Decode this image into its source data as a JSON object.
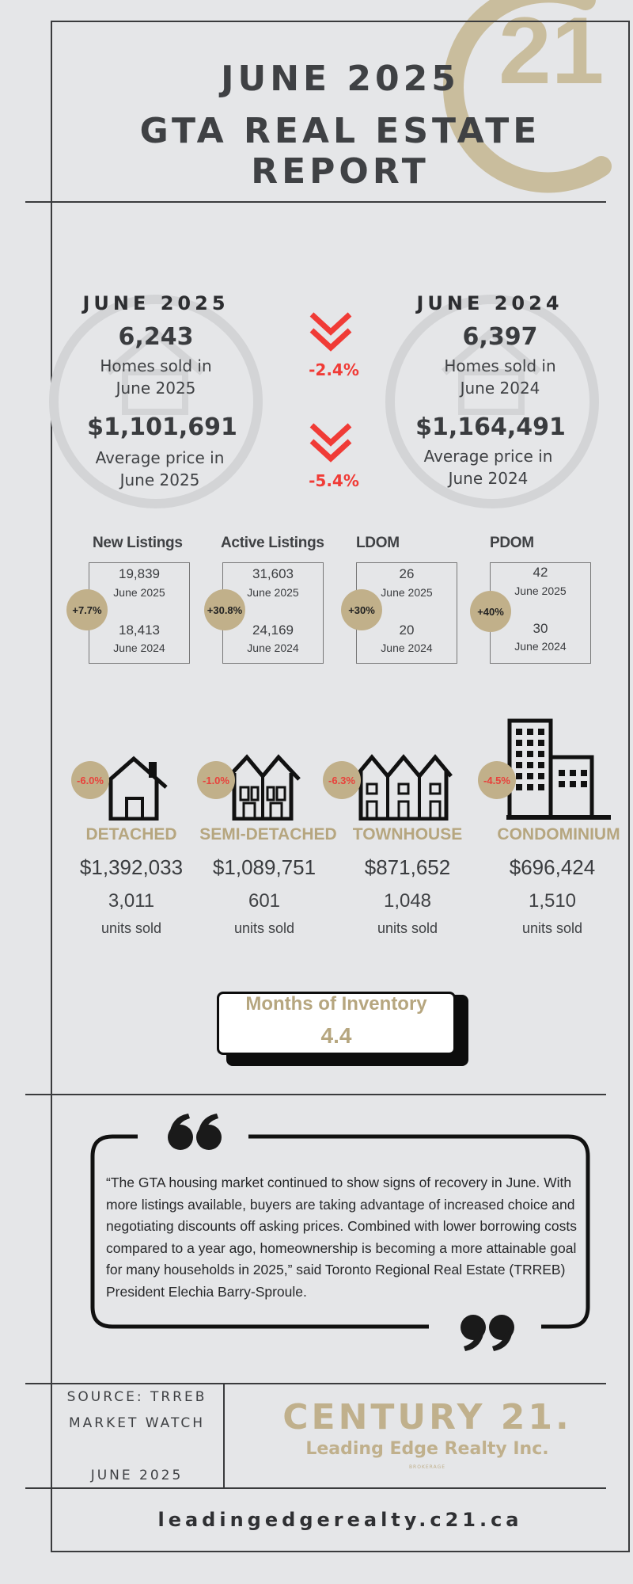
{
  "header": {
    "line1": "JUNE 2025",
    "line2": "GTA REAL ESTATE REPORT",
    "logo": "century21-seal"
  },
  "comparison": {
    "current": {
      "year": "JUNE 2025",
      "homes_sold": "6,243",
      "homes_label_1": "Homes sold in",
      "homes_label_2": "June 2025",
      "price": "$1,101,691",
      "price_label_1": "Average price in",
      "price_label_2": "June 2025"
    },
    "previous": {
      "year": "JUNE 2024",
      "homes_sold": "6,397",
      "homes_label_1": "Homes sold in",
      "homes_label_2": "June 2024",
      "price": "$1,164,491",
      "price_label_1": "Average price in",
      "price_label_2": "June 2024"
    },
    "sales_change": "-2.4%",
    "price_change": "-5.4%",
    "accent": "#f03b36"
  },
  "stats": [
    {
      "title": "New Listings",
      "badge": "+7.7%",
      "v1": "19,839",
      "d1": "June 2025",
      "v2": "18,413",
      "d2": "June 2024"
    },
    {
      "title": "Active Listings",
      "badge": "+30.8%",
      "v1": "31,603",
      "d1": "June 2025",
      "v2": "24,169",
      "d2": "June 2024"
    },
    {
      "title": "LDOM",
      "badge": "+30%",
      "v1": "26",
      "d1": "June 2025",
      "v2": "20",
      "d2": "June 2024"
    },
    {
      "title": "PDOM",
      "badge": "+40%",
      "v1": "42",
      "d1": "June 2025",
      "v2": "30",
      "d2": "June 2024"
    }
  ],
  "property_types": [
    {
      "type": "DETACHED",
      "change": "-6.0%",
      "price": "$1,392,033",
      "units": "3,011",
      "units_label": "units sold",
      "icon": "detached-house-icon"
    },
    {
      "type": "SEMI-DETACHED",
      "change": "-1.0%",
      "price": "$1,089,751",
      "units": "601",
      "units_label": "units sold",
      "icon": "semi-detached-house-icon"
    },
    {
      "type": "TOWNHOUSE",
      "change": "-6.3%",
      "price": "$871,652",
      "units": "1,048",
      "units_label": "units sold",
      "icon": "townhouse-icon"
    },
    {
      "type": "CONDOMINIUM",
      "change": "-4.5%",
      "price": "$696,424",
      "units": "1,510",
      "units_label": "units sold",
      "icon": "condominium-building-icon"
    }
  ],
  "inventory": {
    "label": "Months of Inventory",
    "value": "4.4"
  },
  "quote": {
    "lines": [
      "“The GTA housing market continued to show signs of recovery in June. With",
      "more listings available, buyers are taking advantage of increased choice and",
      "negotiating discounts off asking prices. Combined with lower borrowing costs",
      "compared to a year ago, homeownership is becoming a more attainable goal",
      "for many households in 2025,” said Toronto Regional Real Estate (TRREB)",
      "President Elechia Barry-Sproule."
    ]
  },
  "footer": {
    "source_1": "SOURCE: TRREB",
    "source_2": "MARKET WATCH",
    "source_date": "JUNE 2025",
    "brand": "CENTURY 21.",
    "brokerage_name": "Leading Edge Realty Inc.",
    "brokerage_tag": "BROKERAGE",
    "website": "leadingedgerealty.c21.ca"
  },
  "colors": {
    "gold": "#c0b08c",
    "dark": "#3f4144",
    "red": "#f03b36",
    "background": "#e5e6e8"
  }
}
